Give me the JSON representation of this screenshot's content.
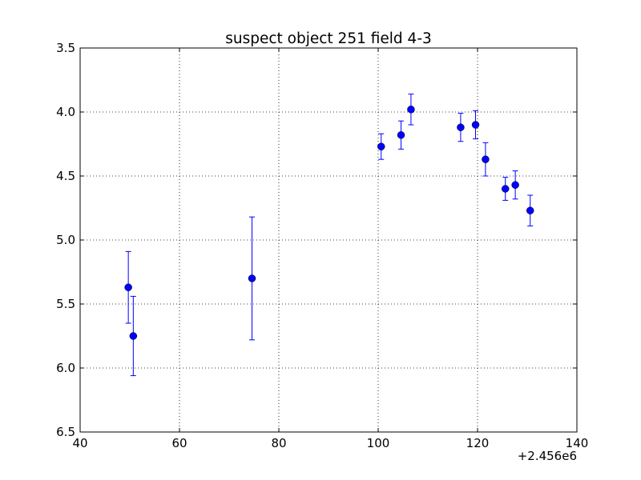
{
  "chart_data": {
    "type": "scatter",
    "title": "suspect object 251 field 4-3",
    "xlabel": "",
    "ylabel": "",
    "x_offset_label": "+2.456e6",
    "xlim": [
      40,
      140
    ],
    "ylim": [
      6.5,
      3.5
    ],
    "y_inverted": true,
    "grid": true,
    "x_ticks": [
      40,
      60,
      80,
      100,
      120,
      140
    ],
    "x_tick_labels": [
      "40",
      "60",
      "80",
      "100",
      "120",
      "140"
    ],
    "y_ticks": [
      3.5,
      4.0,
      4.5,
      5.0,
      5.5,
      6.0,
      6.5
    ],
    "y_tick_labels": [
      "3.5",
      "4.0",
      "4.5",
      "5.0",
      "5.5",
      "6.0",
      "6.5"
    ],
    "series": [
      {
        "color": "#0000ff",
        "points": [
          {
            "x": 49.7,
            "y": 5.37,
            "err": 0.28
          },
          {
            "x": 50.7,
            "y": 5.75,
            "err": 0.31
          },
          {
            "x": 74.6,
            "y": 5.3,
            "err": 0.48
          },
          {
            "x": 100.6,
            "y": 4.27,
            "err": 0.1
          },
          {
            "x": 104.6,
            "y": 4.18,
            "err": 0.11
          },
          {
            "x": 106.6,
            "y": 3.98,
            "err": 0.12
          },
          {
            "x": 116.6,
            "y": 4.12,
            "err": 0.11
          },
          {
            "x": 119.6,
            "y": 4.1,
            "err": 0.11
          },
          {
            "x": 121.6,
            "y": 4.37,
            "err": 0.13
          },
          {
            "x": 125.6,
            "y": 4.6,
            "err": 0.09
          },
          {
            "x": 127.6,
            "y": 4.57,
            "err": 0.11
          },
          {
            "x": 130.6,
            "y": 4.77,
            "err": 0.12
          }
        ]
      }
    ]
  }
}
